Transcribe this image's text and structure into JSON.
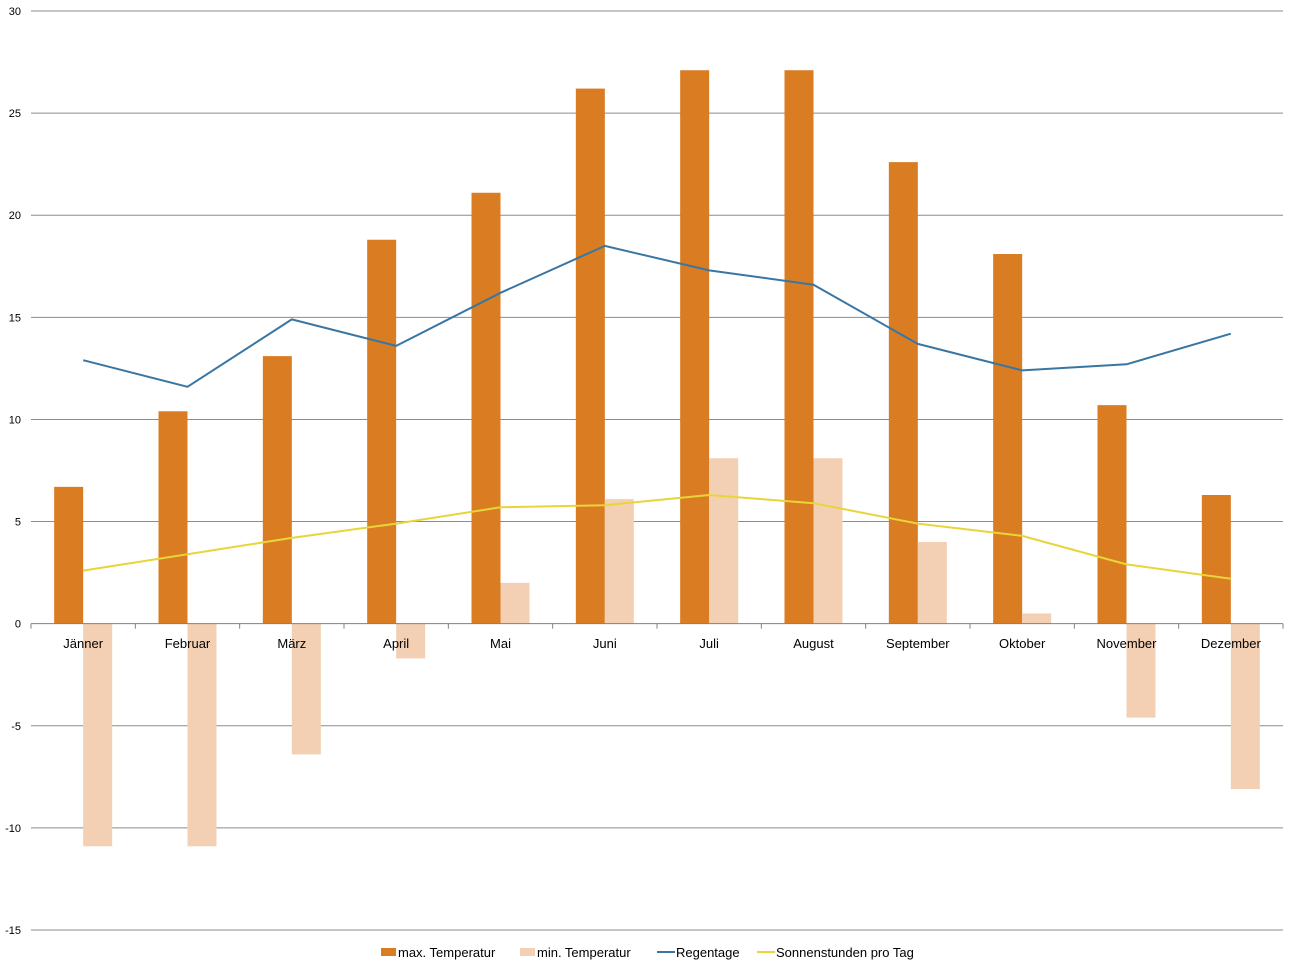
{
  "chart_data": {
    "type": "bar",
    "categories": [
      "Jänner",
      "Februar",
      "März",
      "April",
      "Mai",
      "Juni",
      "Juli",
      "August",
      "September",
      "Oktober",
      "November",
      "Dezember"
    ],
    "ylim": [
      -15,
      30
    ],
    "yticks": [
      30,
      25,
      20,
      15,
      10,
      5,
      0,
      -5,
      -10,
      -15
    ],
    "ytick_labels": [
      "30",
      "25",
      "20",
      "15",
      "10",
      "5",
      "0",
      "-5",
      "-10",
      "-15"
    ],
    "grid": true,
    "legend_position": "bottom",
    "series": [
      {
        "name": "max. Temperatur",
        "kind": "bar",
        "color": "#D97C22",
        "values": [
          6.7,
          10.4,
          13.1,
          18.8,
          21.1,
          26.2,
          27.1,
          27.1,
          22.6,
          18.1,
          10.7,
          6.3
        ]
      },
      {
        "name": "min. Temperatur",
        "kind": "bar",
        "color": "#F3D0B4",
        "values": [
          -10.9,
          -10.9,
          -6.4,
          -1.7,
          2.0,
          6.1,
          8.1,
          8.1,
          4.0,
          0.5,
          -4.6,
          -8.1
        ]
      },
      {
        "name": "Regentage",
        "kind": "line",
        "color": "#3A76A3",
        "values": [
          12.9,
          11.6,
          14.9,
          13.6,
          16.2,
          18.5,
          17.3,
          16.6,
          13.7,
          12.4,
          12.7,
          14.2
        ]
      },
      {
        "name": "Sonnenstunden pro Tag",
        "kind": "line",
        "color": "#E8D53A",
        "values": [
          2.6,
          3.4,
          4.2,
          4.9,
          5.7,
          5.8,
          6.3,
          5.9,
          4.9,
          4.3,
          2.9,
          2.2
        ]
      }
    ]
  }
}
